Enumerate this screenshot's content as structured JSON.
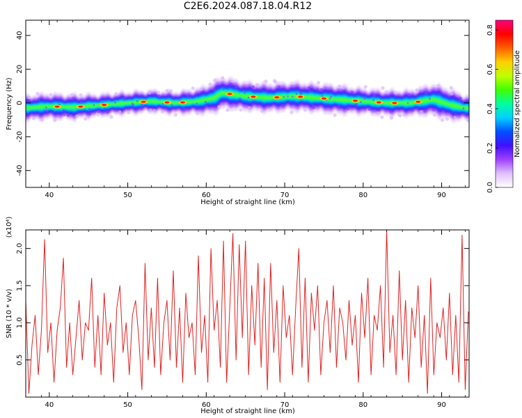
{
  "title": "C2E6.2024.087.18.04.R12",
  "chart_data": [
    {
      "type": "heatmap",
      "xlabel": "Height of straight line (km)",
      "ylabel": "Frequency (Hz)",
      "xlim": [
        37,
        93.5
      ],
      "ylim": [
        -50,
        49
      ],
      "xticks": [
        40,
        50,
        60,
        70,
        80,
        90
      ],
      "yticks": [
        -40,
        -20,
        0,
        20,
        40
      ],
      "colorbar": {
        "label": "Normalized spectral amplitude",
        "range": [
          0.0,
          0.85
        ],
        "ticks": [
          0.0,
          0.2,
          0.4,
          0.6,
          0.8
        ],
        "colors": [
          "#ffffff",
          "#e0c0ff",
          "#a040ff",
          "#4010ff",
          "#0050ff",
          "#00d0ff",
          "#00ffa0",
          "#40ff00",
          "#c0ff00",
          "#ffd000",
          "#ff6000",
          "#ff0000",
          "#ff0080"
        ]
      },
      "ridge": {
        "x": [
          37,
          40,
          43,
          46,
          50,
          53,
          56,
          59,
          61,
          62,
          65,
          68,
          71,
          74,
          77,
          80,
          83,
          86,
          89,
          91,
          93
        ],
        "center_hz": [
          -3,
          -2,
          -2.5,
          -1.5,
          0,
          1,
          0,
          1,
          3,
          6,
          4,
          3,
          4,
          3,
          2,
          1,
          0,
          0,
          2,
          -1,
          -3
        ],
        "half_width_hz": [
          4,
          4,
          4,
          3.5,
          3.5,
          3.5,
          3.5,
          4,
          5,
          5,
          4.5,
          4.5,
          4.5,
          4.5,
          4.5,
          4,
          4,
          4,
          5,
          5,
          4
        ]
      },
      "hot_spots_x": [
        41,
        44,
        47,
        52,
        55,
        57,
        63,
        66,
        69,
        72,
        75,
        79,
        82,
        84,
        87
      ]
    },
    {
      "type": "line",
      "xlabel": "Height of straight line (km)",
      "ylabel": "SNR (10 * v/v)",
      "multiplier": "(x10⁴)",
      "xlim": [
        37,
        93.5
      ],
      "ylim": [
        0,
        2.25
      ],
      "xticks": [
        40,
        50,
        60,
        70,
        80,
        90
      ],
      "yticks": [
        0.5,
        1.0,
        1.5,
        2.0
      ],
      "ytick_labels": [
        "0.5",
        "1.0",
        "1.5",
        "2.0"
      ],
      "color": "#e02020",
      "x": [
        37.0,
        37.4,
        37.8,
        38.2,
        38.6,
        39.0,
        39.4,
        39.8,
        40.2,
        40.6,
        41.0,
        41.4,
        41.8,
        42.2,
        42.6,
        43.0,
        43.4,
        43.8,
        44.2,
        44.6,
        45.0,
        45.4,
        45.8,
        46.2,
        46.6,
        47.0,
        47.4,
        47.8,
        48.2,
        48.6,
        49.0,
        49.4,
        49.8,
        50.2,
        50.6,
        51.0,
        51.4,
        51.8,
        52.2,
        52.6,
        53.0,
        53.4,
        53.8,
        54.2,
        54.6,
        55.0,
        55.4,
        55.8,
        56.2,
        56.6,
        57.0,
        57.4,
        57.8,
        58.2,
        58.6,
        59.0,
        59.4,
        59.8,
        60.2,
        60.6,
        61.0,
        61.4,
        61.8,
        62.2,
        62.6,
        63.0,
        63.4,
        63.8,
        64.2,
        64.6,
        65.0,
        65.4,
        65.8,
        66.2,
        66.6,
        67.0,
        67.4,
        67.8,
        68.2,
        68.6,
        69.0,
        69.4,
        69.8,
        70.2,
        70.6,
        71.0,
        71.4,
        71.8,
        72.2,
        72.6,
        73.0,
        73.4,
        73.8,
        74.2,
        74.6,
        75.0,
        75.4,
        75.8,
        76.2,
        76.6,
        77.0,
        77.4,
        77.8,
        78.2,
        78.6,
        79.0,
        79.4,
        79.8,
        80.2,
        80.6,
        81.0,
        81.4,
        81.8,
        82.2,
        82.6,
        83.0,
        83.4,
        83.8,
        84.2,
        84.6,
        85.0,
        85.4,
        85.8,
        86.2,
        86.6,
        87.0,
        87.4,
        87.8,
        88.2,
        88.6,
        89.0,
        89.4,
        89.8,
        90.2,
        90.6,
        91.0,
        91.4,
        91.8,
        92.2,
        92.6,
        93.0,
        93.4
      ],
      "y": [
        1.3,
        0.05,
        0.7,
        1.1,
        0.3,
        0.9,
        2.12,
        0.6,
        1.0,
        0.2,
        0.9,
        1.2,
        1.87,
        0.4,
        1.0,
        0.3,
        0.8,
        1.3,
        0.5,
        1.0,
        0.9,
        1.6,
        0.4,
        1.1,
        0.3,
        1.4,
        0.7,
        1.0,
        0.2,
        1.2,
        1.5,
        0.6,
        1.0,
        0.3,
        1.1,
        1.3,
        0.8,
        0.1,
        1.8,
        0.5,
        1.2,
        0.4,
        1.6,
        0.3,
        1.0,
        1.3,
        0.5,
        1.7,
        0.4,
        1.2,
        0.2,
        1.4,
        0.8,
        1.0,
        0.3,
        1.9,
        0.6,
        1.1,
        0.2,
        2.0,
        0.9,
        1.3,
        0.4,
        2.1,
        0.2,
        1.2,
        2.2,
        0.5,
        2.05,
        0.8,
        2.1,
        0.3,
        1.5,
        0.7,
        1.8,
        0.4,
        1.6,
        0.1,
        1.8,
        0.6,
        1.3,
        0.2,
        1.5,
        0.8,
        1.1,
        0.3,
        1.2,
        2.0,
        0.4,
        1.6,
        0.2,
        1.4,
        0.9,
        1.5,
        0.3,
        1.0,
        1.3,
        0.6,
        1.5,
        0.4,
        1.2,
        1.0,
        0.5,
        1.3,
        0.7,
        1.1,
        0.2,
        1.4,
        0.8,
        1.6,
        0.3,
        1.1,
        0.9,
        1.5,
        0.4,
        2.25,
        0.6,
        1.1,
        0.3,
        1.7,
        0.5,
        1.3,
        0.2,
        1.2,
        0.8,
        1.5,
        0.4,
        1.1,
        0.05,
        1.6,
        0.3,
        1.0,
        0.8,
        1.2,
        0.5,
        1.4,
        0.3,
        1.1,
        0.2,
        2.18,
        0.1,
        1.15
      ]
    }
  ]
}
